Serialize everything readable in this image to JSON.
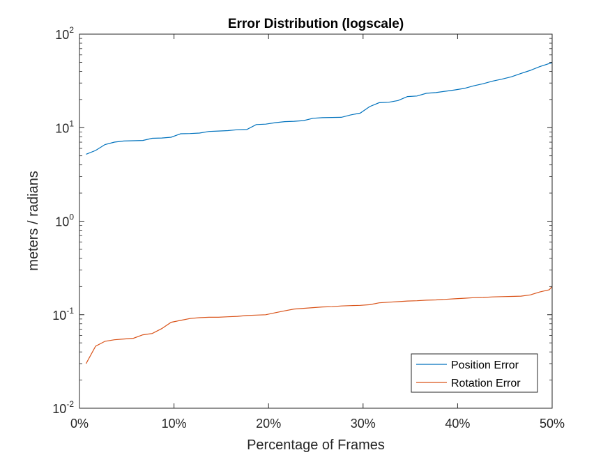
{
  "chart_data": {
    "type": "line",
    "title": "Error Distribution (logscale)",
    "xlabel": "Percentage of Frames",
    "ylabel": "meters / radians",
    "yscale": "log",
    "xlim": [
      0,
      50
    ],
    "ylim": [
      0.01,
      100
    ],
    "x_ticks": [
      {
        "value": 0,
        "label": "0%"
      },
      {
        "value": 10,
        "label": "10%"
      },
      {
        "value": 20,
        "label": "20%"
      },
      {
        "value": 30,
        "label": "30%"
      },
      {
        "value": 40,
        "label": "40%"
      },
      {
        "value": 50,
        "label": "50%"
      }
    ],
    "y_ticks": [
      {
        "value": 0.01,
        "base": "10",
        "exp": "-2"
      },
      {
        "value": 0.1,
        "base": "10",
        "exp": "-1"
      },
      {
        "value": 1,
        "base": "10",
        "exp": "0"
      },
      {
        "value": 10,
        "base": "10",
        "exp": "1"
      },
      {
        "value": 100,
        "base": "10",
        "exp": "2"
      }
    ],
    "grid": false,
    "legend_position": "bottom-right",
    "series": [
      {
        "name": "Position Error",
        "color": "#0072bd",
        "points": [
          [
            0.7,
            5.2
          ],
          [
            1.7,
            5.7
          ],
          [
            2.7,
            6.6
          ],
          [
            3.7,
            7.0
          ],
          [
            4.7,
            7.2
          ],
          [
            5.7,
            7.25
          ],
          [
            6.7,
            7.3
          ],
          [
            7.7,
            7.7
          ],
          [
            8.7,
            7.75
          ],
          [
            9.7,
            7.9
          ],
          [
            10.7,
            8.6
          ],
          [
            11.7,
            8.65
          ],
          [
            12.7,
            8.75
          ],
          [
            13.7,
            9.1
          ],
          [
            14.7,
            9.2
          ],
          [
            15.7,
            9.3
          ],
          [
            16.7,
            9.5
          ],
          [
            17.7,
            9.55
          ],
          [
            18.7,
            10.8
          ],
          [
            19.7,
            10.9
          ],
          [
            20.7,
            11.3
          ],
          [
            21.7,
            11.6
          ],
          [
            22.7,
            11.7
          ],
          [
            23.7,
            11.9
          ],
          [
            24.7,
            12.6
          ],
          [
            25.7,
            12.8
          ],
          [
            26.7,
            12.85
          ],
          [
            27.7,
            12.9
          ],
          [
            28.7,
            13.7
          ],
          [
            29.7,
            14.3
          ],
          [
            30.7,
            16.8
          ],
          [
            31.7,
            18.5
          ],
          [
            32.7,
            18.7
          ],
          [
            33.7,
            19.5
          ],
          [
            34.7,
            21.5
          ],
          [
            35.7,
            21.8
          ],
          [
            36.7,
            23.3
          ],
          [
            37.7,
            23.7
          ],
          [
            38.7,
            24.5
          ],
          [
            39.7,
            25.3
          ],
          [
            40.7,
            26.3
          ],
          [
            41.7,
            28.0
          ],
          [
            42.7,
            29.5
          ],
          [
            43.7,
            31.5
          ],
          [
            44.7,
            33.0
          ],
          [
            45.7,
            35.0
          ],
          [
            46.7,
            38.0
          ],
          [
            47.7,
            41.0
          ],
          [
            48.7,
            45.0
          ],
          [
            49.7,
            48.5
          ],
          [
            50.0,
            49.5
          ]
        ]
      },
      {
        "name": "Rotation Error",
        "color": "#d95319",
        "points": [
          [
            0.7,
            0.03
          ],
          [
            1.7,
            0.046
          ],
          [
            2.7,
            0.052
          ],
          [
            3.7,
            0.054
          ],
          [
            4.7,
            0.055
          ],
          [
            5.7,
            0.056
          ],
          [
            6.7,
            0.061
          ],
          [
            7.7,
            0.063
          ],
          [
            8.7,
            0.071
          ],
          [
            9.7,
            0.083
          ],
          [
            10.7,
            0.087
          ],
          [
            11.7,
            0.091
          ],
          [
            12.7,
            0.093
          ],
          [
            13.7,
            0.094
          ],
          [
            14.7,
            0.094
          ],
          [
            15.7,
            0.095
          ],
          [
            16.7,
            0.096
          ],
          [
            17.7,
            0.098
          ],
          [
            18.7,
            0.099
          ],
          [
            19.7,
            0.1
          ],
          [
            20.7,
            0.105
          ],
          [
            21.7,
            0.11
          ],
          [
            22.7,
            0.115
          ],
          [
            23.7,
            0.117
          ],
          [
            24.7,
            0.119
          ],
          [
            25.7,
            0.121
          ],
          [
            26.7,
            0.122
          ],
          [
            27.7,
            0.124
          ],
          [
            28.7,
            0.125
          ],
          [
            29.7,
            0.126
          ],
          [
            30.7,
            0.128
          ],
          [
            31.7,
            0.134
          ],
          [
            32.7,
            0.136
          ],
          [
            33.7,
            0.138
          ],
          [
            34.7,
            0.14
          ],
          [
            35.7,
            0.141
          ],
          [
            36.7,
            0.143
          ],
          [
            37.7,
            0.144
          ],
          [
            38.7,
            0.146
          ],
          [
            39.7,
            0.148
          ],
          [
            40.7,
            0.15
          ],
          [
            41.7,
            0.152
          ],
          [
            42.7,
            0.153
          ],
          [
            43.7,
            0.155
          ],
          [
            44.7,
            0.156
          ],
          [
            45.7,
            0.157
          ],
          [
            46.7,
            0.158
          ],
          [
            47.7,
            0.163
          ],
          [
            48.7,
            0.175
          ],
          [
            49.7,
            0.185
          ],
          [
            50.0,
            0.2
          ]
        ]
      }
    ]
  }
}
